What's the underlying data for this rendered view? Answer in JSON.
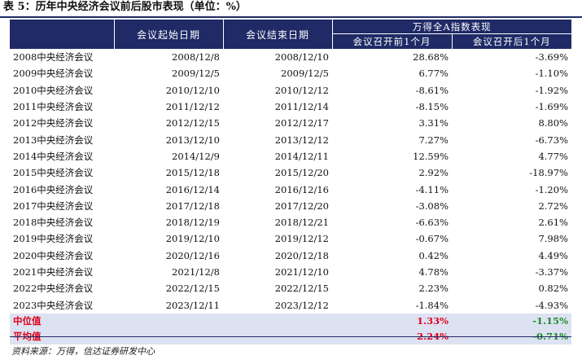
{
  "title": "表 5：历年中央经济会议前后股市表现（单位：%）",
  "header": {
    "group": "万得全A指数表现",
    "col_start": "会议起始日期",
    "col_end": "会议结束日期",
    "col_before": "会议召开前1个月",
    "col_after": "会议召开后1个月"
  },
  "rows": [
    {
      "name": "2008中央经济会议",
      "start": "2008/12/8",
      "end": "2008/12/10",
      "before": "28.68%",
      "after": "-3.69%"
    },
    {
      "name": "2009中央经济会议",
      "start": "2009/12/5",
      "end": "2009/12/5",
      "before": "6.77%",
      "after": "-1.10%"
    },
    {
      "name": "2010中央经济会议",
      "start": "2010/12/10",
      "end": "2010/12/12",
      "before": "-8.61%",
      "after": "-1.92%"
    },
    {
      "name": "2011中央经济会议",
      "start": "2011/12/12",
      "end": "2011/12/14",
      "before": "-8.15%",
      "after": "-1.69%"
    },
    {
      "name": "2012中央经济会议",
      "start": "2012/12/15",
      "end": "2012/12/17",
      "before": "3.31%",
      "after": "8.80%"
    },
    {
      "name": "2013中央经济会议",
      "start": "2013/12/10",
      "end": "2013/12/12",
      "before": "7.27%",
      "after": "-6.73%"
    },
    {
      "name": "2014中央经济会议",
      "start": "2014/12/9",
      "end": "2014/12/11",
      "before": "12.59%",
      "after": "4.77%"
    },
    {
      "name": "2015中央经济会议",
      "start": "2015/12/18",
      "end": "2015/12/20",
      "before": "2.92%",
      "after": "-18.97%"
    },
    {
      "name": "2016中央经济会议",
      "start": "2016/12/14",
      "end": "2016/12/16",
      "before": "-4.11%",
      "after": "-1.20%"
    },
    {
      "name": "2017中央经济会议",
      "start": "2017/12/18",
      "end": "2017/12/20",
      "before": "-3.08%",
      "after": "2.72%"
    },
    {
      "name": "2018中央经济会议",
      "start": "2018/12/19",
      "end": "2018/12/21",
      "before": "-6.63%",
      "after": "2.61%"
    },
    {
      "name": "2019中央经济会议",
      "start": "2019/12/10",
      "end": "2019/12/12",
      "before": "-0.67%",
      "after": "7.98%"
    },
    {
      "name": "2020中央经济会议",
      "start": "2020/12/16",
      "end": "2020/12/18",
      "before": "0.42%",
      "after": "4.49%"
    },
    {
      "name": "2021中央经济会议",
      "start": "2021/12/8",
      "end": "2021/12/10",
      "before": "4.78%",
      "after": "-3.37%"
    },
    {
      "name": "2022中央经济会议",
      "start": "2022/12/15",
      "end": "2022/12/15",
      "before": "2.23%",
      "after": "0.82%"
    },
    {
      "name": "2023中央经济会议",
      "start": "2023/12/11",
      "end": "2023/12/12",
      "before": "-1.84%",
      "after": "-4.93%"
    }
  ],
  "stats": [
    {
      "name": "中位值",
      "before": "1.33%",
      "after": "-1.15%"
    },
    {
      "name": "平均值",
      "before": "2.24%",
      "after": "-0.71%"
    }
  ],
  "source": "资料来源：万得，信达证券研发中心",
  "colors": {
    "header_bg": "#1f2a66",
    "stat_bg": "#dde2f2",
    "positive_red": "#e0001a",
    "negative_green": "#1e8c2a"
  }
}
